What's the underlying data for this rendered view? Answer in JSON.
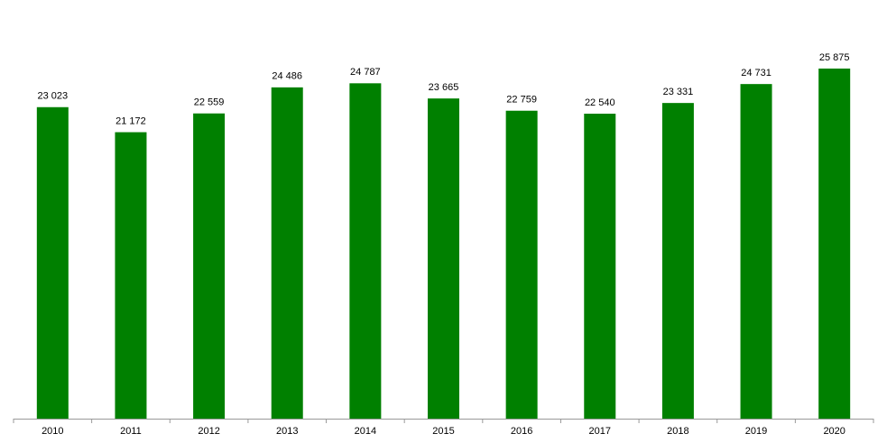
{
  "chart_data": {
    "type": "bar",
    "categories": [
      "2010",
      "2011",
      "2012",
      "2013",
      "2014",
      "2015",
      "2016",
      "2017",
      "2018",
      "2019",
      "2020"
    ],
    "values": [
      23023,
      21172,
      22559,
      24486,
      24787,
      23665,
      22759,
      22540,
      23331,
      24731,
      25875
    ],
    "value_labels": [
      "23 023",
      "21 172",
      "22 559",
      "24 486",
      "24 787",
      "23 665",
      "22 759",
      "22 540",
      "23 331",
      "24 731",
      "25 875"
    ],
    "color": "#008000"
  }
}
